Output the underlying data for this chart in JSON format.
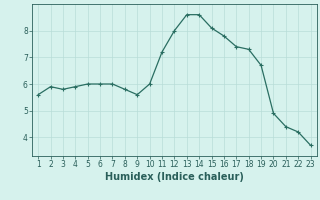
{
  "x": [
    1,
    2,
    3,
    4,
    5,
    6,
    7,
    8,
    9,
    10,
    11,
    12,
    13,
    14,
    15,
    16,
    17,
    18,
    19,
    20,
    21,
    22,
    23
  ],
  "y": [
    5.6,
    5.9,
    5.8,
    5.9,
    6.0,
    6.0,
    6.0,
    5.8,
    5.6,
    6.0,
    7.2,
    8.0,
    8.6,
    8.6,
    8.1,
    7.8,
    7.4,
    7.3,
    6.7,
    4.9,
    4.4,
    4.2,
    3.7
  ],
  "xlabel": "Humidex (Indice chaleur)",
  "line_color": "#2a6e62",
  "marker": "+",
  "bg_color": "#d6f2ed",
  "grid_color": "#b8ddd8",
  "axis_color": "#2a5f5a",
  "tick_color": "#2a5f5a",
  "ylim": [
    3.3,
    9.0
  ],
  "xlim": [
    0.5,
    23.5
  ],
  "yticks": [
    4,
    5,
    6,
    7,
    8
  ],
  "xticks": [
    1,
    2,
    3,
    4,
    5,
    6,
    7,
    8,
    9,
    10,
    11,
    12,
    13,
    14,
    15,
    16,
    17,
    18,
    19,
    20,
    21,
    22,
    23
  ],
  "tick_fontsize": 5.5,
  "xlabel_fontsize": 7.0,
  "xlabel_fontweight": "bold",
  "linewidth": 0.9,
  "markersize": 3.0,
  "markeredgewidth": 0.8
}
